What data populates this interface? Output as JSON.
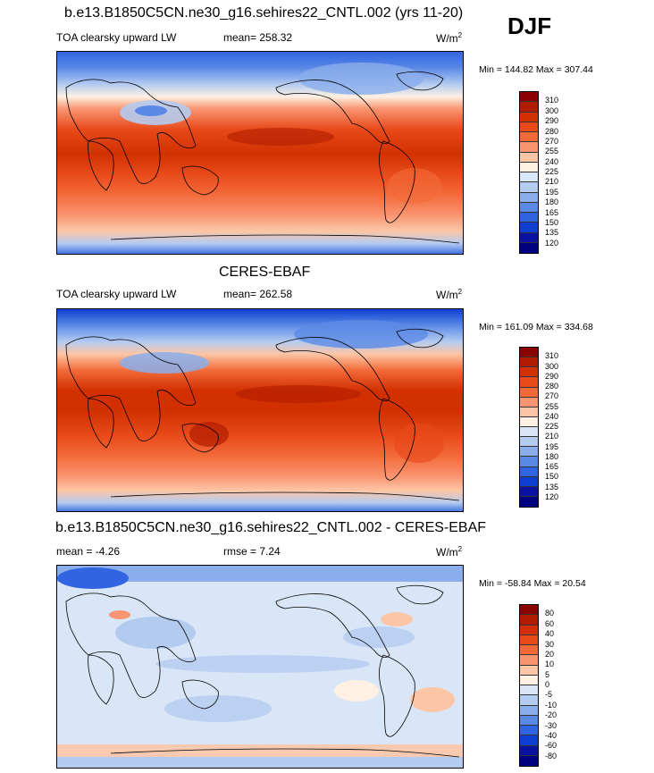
{
  "season": "DJF",
  "panels": [
    {
      "title": "b.e13.B1850C5CN.ne30_g16.sehires22_CNTL.002 (yrs 11-20)",
      "left_label": "TOA clearsky upward LW",
      "center_label": "mean= 258.32",
      "units_base": "W/m",
      "units_exp": "2",
      "minmax": "Min = 144.82 Max = 307.44",
      "levels": [
        "310",
        "300",
        "290",
        "280",
        "270",
        "255",
        "240",
        "225",
        "210",
        "195",
        "180",
        "165",
        "150",
        "135",
        "120"
      ],
      "colors": [
        "#8b0000",
        "#b01c00",
        "#d23000",
        "#e84a1a",
        "#f36a3a",
        "#f99470",
        "#fcc6a6",
        "#fef1e4",
        "#d9e6f7",
        "#b4cbf0",
        "#8aaeeb",
        "#5b8ae6",
        "#3164e0",
        "#0f3fd0",
        "#0a13a0",
        "#000080"
      ]
    },
    {
      "title": "CERES-EBAF",
      "left_label": "TOA clearsky upward LW",
      "center_label": "mean= 262.58",
      "units_base": "W/m",
      "units_exp": "2",
      "minmax": "Min = 161.09 Max = 334.68",
      "levels": [
        "310",
        "300",
        "290",
        "280",
        "270",
        "255",
        "240",
        "225",
        "210",
        "195",
        "180",
        "165",
        "150",
        "135",
        "120"
      ],
      "colors": [
        "#8b0000",
        "#b01c00",
        "#d23000",
        "#e84a1a",
        "#f36a3a",
        "#f99470",
        "#fcc6a6",
        "#fef1e4",
        "#d9e6f7",
        "#b4cbf0",
        "#8aaeeb",
        "#5b8ae6",
        "#3164e0",
        "#0f3fd0",
        "#0a13a0",
        "#000080"
      ]
    },
    {
      "title": "b.e13.B1850C5CN.ne30_g16.sehires22_CNTL.002 - CERES-EBAF",
      "left_label": "mean =  -4.26",
      "center_label": "rmse =   7.24",
      "units_base": "W/m",
      "units_exp": "2",
      "minmax": "Min = -58.84 Max =  20.54",
      "levels": [
        "80",
        "60",
        "40",
        "30",
        "20",
        "10",
        "5",
        "0",
        "-5",
        "-10",
        "-20",
        "-30",
        "-40",
        "-60",
        "-80"
      ],
      "colors": [
        "#8b0000",
        "#b01c00",
        "#d23000",
        "#e84a1a",
        "#f36a3a",
        "#f99470",
        "#fcc6a6",
        "#fef1e4",
        "#d9e6f7",
        "#b4cbf0",
        "#8aaeeb",
        "#5b8ae6",
        "#3164e0",
        "#0f3fd0",
        "#0a13a0",
        "#000080"
      ]
    }
  ]
}
